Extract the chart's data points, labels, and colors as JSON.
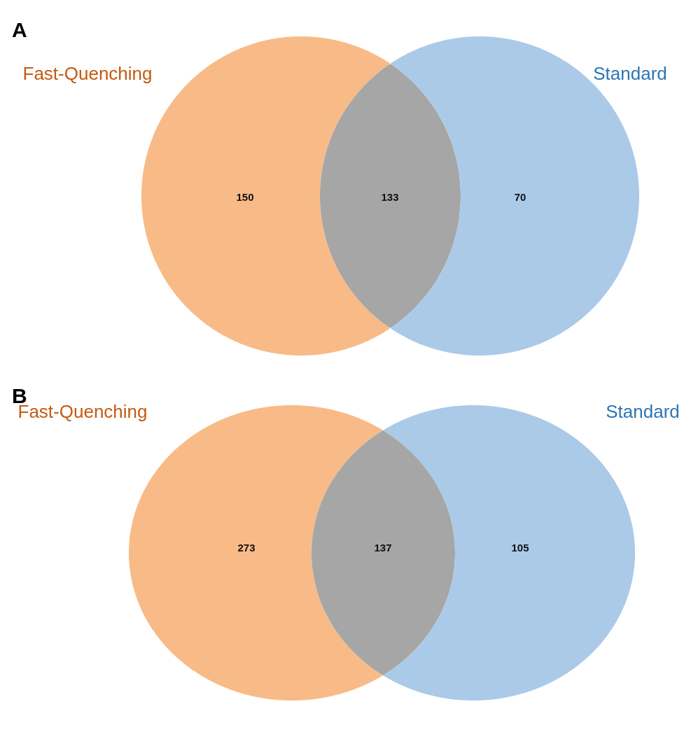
{
  "chart_data": [
    {
      "type": "other",
      "title": "A",
      "categories": [
        "Fast-Quenching",
        null,
        "Standard"
      ],
      "values": [
        150,
        133,
        70
      ],
      "colors": [
        "#f8bb87",
        "#a6a6a6",
        "#abcae8"
      ],
      "data_labels": true
    },
    {
      "type": "other",
      "title": "B",
      "categories": [
        "Fast-Quenching",
        null,
        "Standard"
      ],
      "values": [
        273,
        137,
        105
      ],
      "colors": [
        "#f8bb87",
        "#a6a6a6",
        "#abcae8"
      ],
      "data_labels": true
    }
  ]
}
